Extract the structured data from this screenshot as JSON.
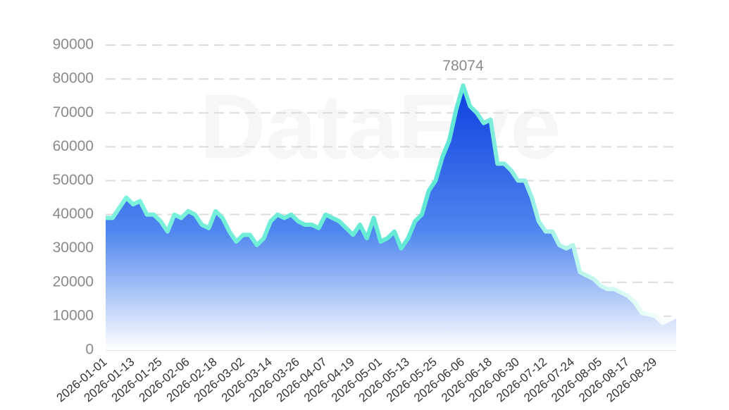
{
  "chart_data": {
    "type": "area",
    "watermark": "DataEye",
    "categories": [
      "2026-01-01",
      null,
      null,
      null,
      "2026-01-13",
      null,
      null,
      null,
      "2026-01-25",
      null,
      null,
      null,
      "2026-02-06",
      null,
      null,
      null,
      "2026-02-18",
      null,
      null,
      null,
      "2026-03-02",
      null,
      null,
      null,
      "2026-03-14",
      null,
      null,
      null,
      "2026-03-26",
      null,
      null,
      null,
      "2026-04-07",
      null,
      null,
      null,
      "2026-04-19",
      null,
      null,
      null,
      "2026-05-01",
      null,
      null,
      null,
      "2026-05-13",
      null,
      null,
      null,
      "2026-05-25",
      null,
      null,
      null,
      "2026-06-06",
      null,
      null,
      null,
      "2026-06-18",
      null,
      null,
      null,
      "2026-06-30",
      null,
      null,
      null,
      "2026-07-12",
      null,
      null,
      null,
      "2026-07-24",
      null,
      null,
      null,
      "2026-08-05",
      null,
      null,
      null,
      "2026-08-17",
      null,
      null,
      null,
      "2026-08-29",
      null,
      null,
      null
    ],
    "values": [
      39000,
      39000,
      42000,
      45000,
      43000,
      44000,
      40000,
      40000,
      38000,
      35000,
      40000,
      39000,
      41000,
      40000,
      37000,
      36000,
      41000,
      39000,
      35000,
      32000,
      34000,
      34000,
      31000,
      33000,
      38000,
      40000,
      39000,
      40000,
      38000,
      37000,
      37000,
      36000,
      40000,
      39000,
      38000,
      36000,
      34000,
      37000,
      33000,
      39000,
      32000,
      33000,
      35000,
      30000,
      33000,
      38000,
      40000,
      47000,
      50000,
      57000,
      62000,
      71000,
      78074,
      72000,
      70000,
      67000,
      68000,
      55000,
      55000,
      53000,
      50000,
      50000,
      45000,
      38000,
      35000,
      35000,
      31000,
      30000,
      31000,
      23000,
      22000,
      21000,
      19000,
      18000,
      18000,
      17000,
      16000,
      14000,
      11000,
      10500,
      10000,
      8000,
      9000,
      10000
    ],
    "color": "#6ff0d6",
    "ylim": [
      0,
      90000
    ],
    "yticks": [
      0,
      10000,
      20000,
      30000,
      40000,
      50000,
      60000,
      70000,
      80000,
      90000
    ],
    "grid": true
  }
}
